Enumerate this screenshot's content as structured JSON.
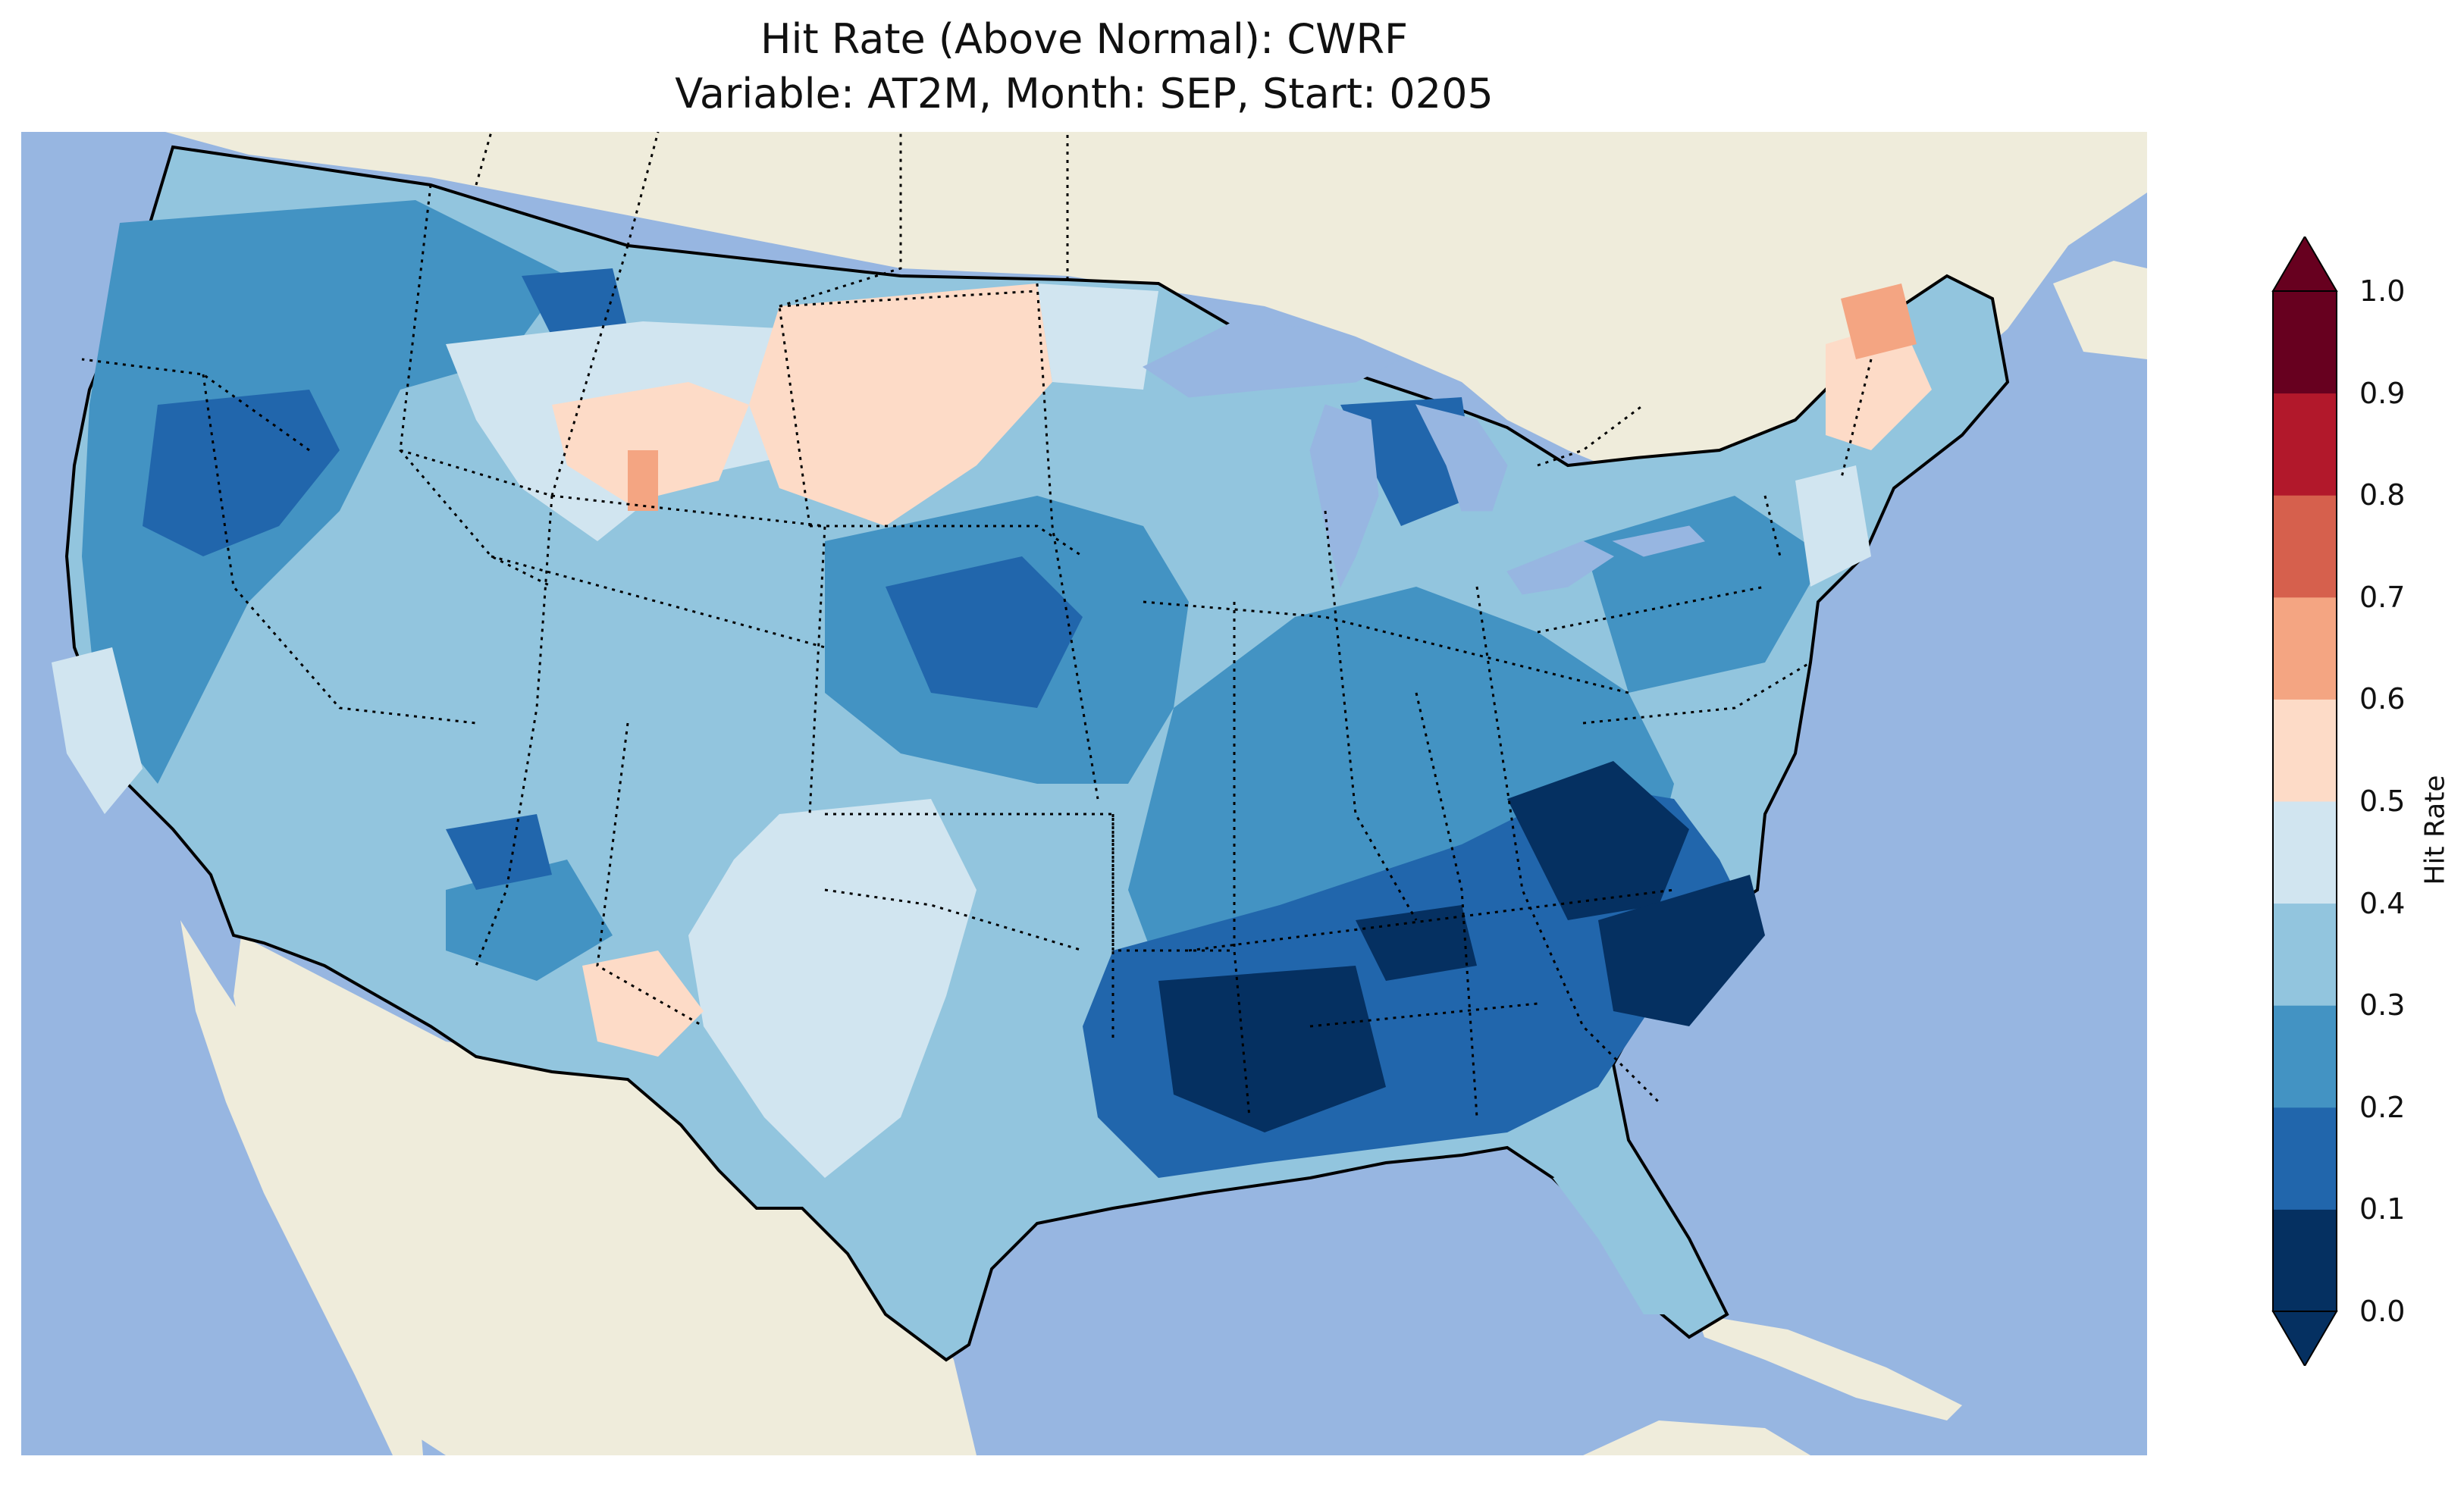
{
  "title": {
    "line1": "Hit Rate (Above Normal): CWRF",
    "line2": "Variable: AT2M, Month: SEP, Start: 0205"
  },
  "colorbar": {
    "label": "Hit Rate",
    "ticks": [
      "0.0",
      "0.1",
      "0.2",
      "0.3",
      "0.4",
      "0.5",
      "0.6",
      "0.7",
      "0.8",
      "0.9",
      "1.0"
    ],
    "colors": [
      "#053061",
      "#2166ac",
      "#4393c3",
      "#92c5de",
      "#d1e5f0",
      "#fddbc7",
      "#f4a582",
      "#d6604d",
      "#b2182b",
      "#67001f"
    ],
    "extend": "both"
  },
  "map": {
    "ocean_color": "#97b6e1",
    "land_color": "#efecdb"
  }
}
